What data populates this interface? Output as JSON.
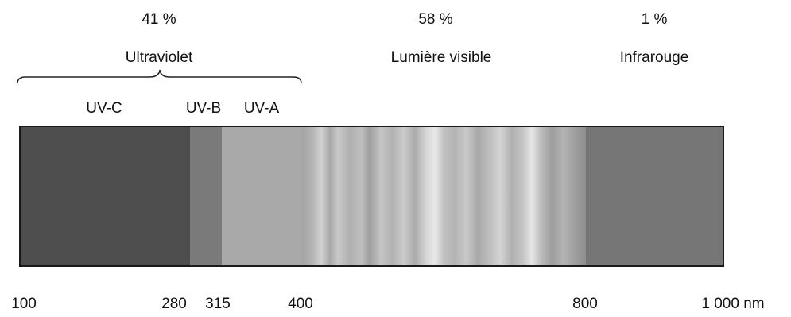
{
  "groups": {
    "uv": {
      "percent": "41 %",
      "label": "Ultraviolet"
    },
    "vis": {
      "percent": "58 %",
      "label": "Lumière visible"
    },
    "ir": {
      "percent": "1 %",
      "label": "Infrarouge"
    }
  },
  "uv_bands": {
    "uvc": "UV-C",
    "uvb": "UV-B",
    "uva": "UV-A"
  },
  "ticks": [
    "100",
    "280",
    "315",
    "400",
    "800",
    "1 000 nm"
  ],
  "colors": {
    "uvc": "#4e4e4e",
    "uvb": "#7a7a7a",
    "uva": "#a9a9a9",
    "ir": "#767676",
    "border": "#1a1a1a"
  }
}
